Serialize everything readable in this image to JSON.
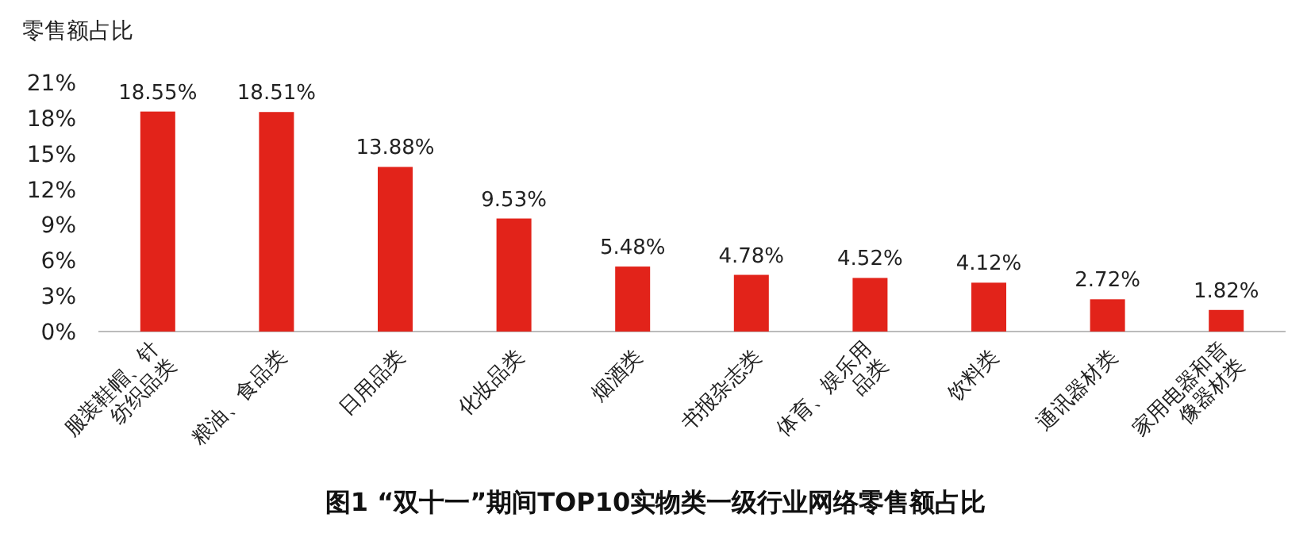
{
  "chart_data": {
    "type": "bar",
    "title": "图1 “双十一”期间TOP10实物类一级行业网络零售额占比",
    "ylabel": "零售额占比",
    "categories": [
      "服装鞋帽、针纺织品类",
      "粮油、食品类",
      "日用品类",
      "化妆品类",
      "烟酒类",
      "书报杂志类",
      "体育、娱乐用品类",
      "饮料类",
      "通讯器材类",
      "家用电器和音像器材类"
    ],
    "values": [
      18.55,
      18.51,
      13.88,
      9.53,
      5.48,
      4.78,
      4.52,
      4.12,
      2.72,
      1.82
    ],
    "value_labels": [
      "18.55%",
      "18.51%",
      "13.88%",
      "9.53%",
      "5.48%",
      "4.78%",
      "4.52%",
      "4.12%",
      "2.72%",
      "1.82%"
    ],
    "color": "#e2231a",
    "ylim": [
      0,
      21
    ],
    "yticks": [
      {
        "value": 0,
        "label": "0%"
      },
      {
        "value": 3,
        "label": "3%"
      },
      {
        "value": 6,
        "label": "6%"
      },
      {
        "value": 9,
        "label": "9%"
      },
      {
        "value": 12,
        "label": "12%"
      },
      {
        "value": 15,
        "label": "15%"
      },
      {
        "value": 18,
        "label": "18%"
      },
      {
        "value": 21,
        "label": "21%"
      }
    ],
    "grid": false
  }
}
